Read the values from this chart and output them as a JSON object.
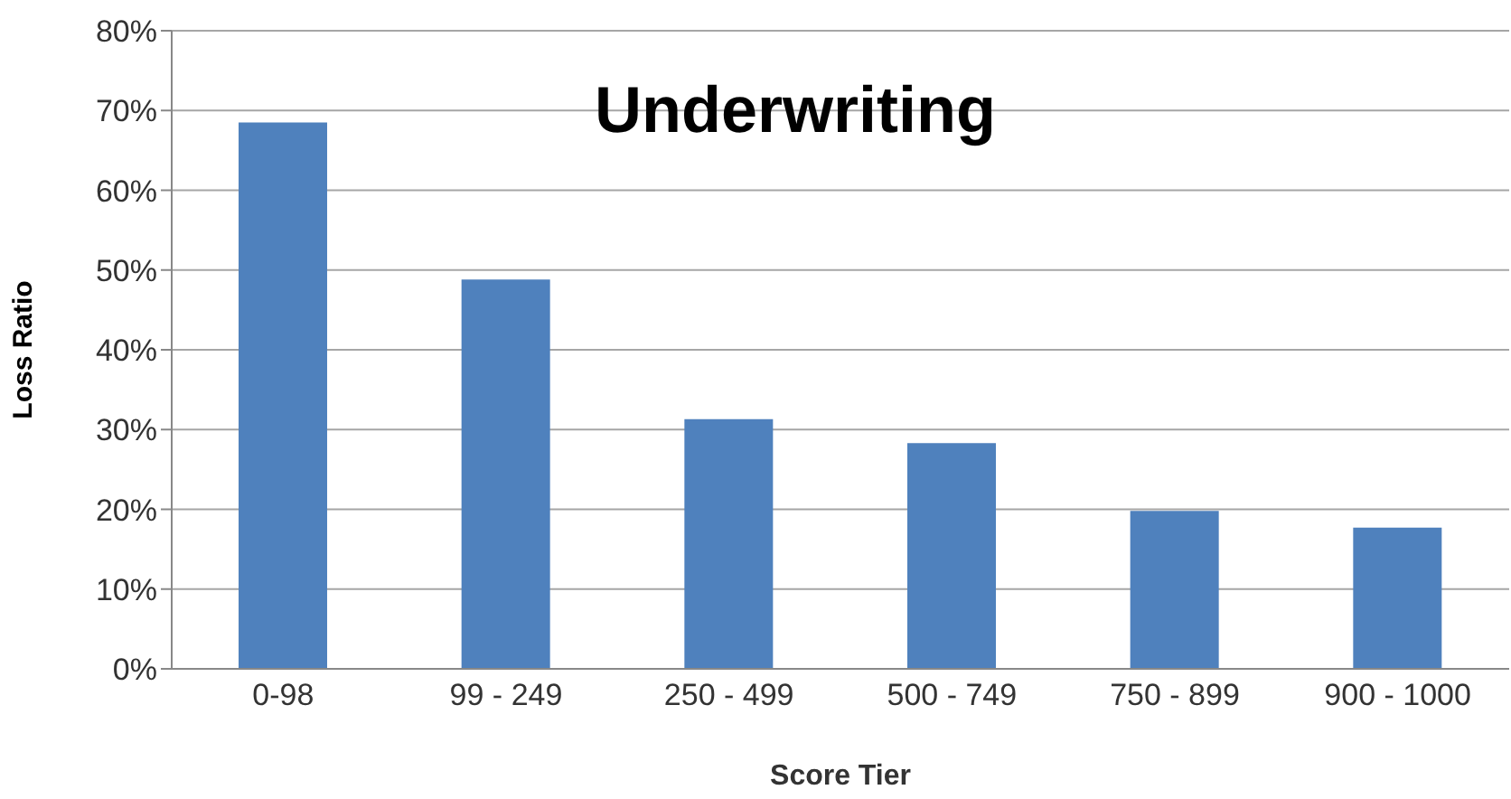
{
  "chart_data": {
    "type": "bar",
    "title": "Underwriting",
    "xlabel": "Score Tier",
    "ylabel": "Loss Ratio",
    "categories": [
      "0-98",
      "99 - 249",
      "250 - 499",
      "500 - 749",
      "750 - 899",
      "900 - 1000"
    ],
    "values": [
      68.5,
      48.8,
      31.3,
      28.3,
      19.8,
      17.7
    ],
    "color": "#4f81bd",
    "ylim": [
      0,
      80
    ],
    "yticks": [
      {
        "value": 0,
        "label": "0%"
      },
      {
        "value": 10,
        "label": "10%"
      },
      {
        "value": 20,
        "label": "20%"
      },
      {
        "value": 30,
        "label": "30%"
      },
      {
        "value": 40,
        "label": "40%"
      },
      {
        "value": 50,
        "label": "50%"
      },
      {
        "value": 60,
        "label": "60%"
      },
      {
        "value": 70,
        "label": "70%"
      },
      {
        "value": 80,
        "label": "80%"
      }
    ],
    "grid": "y"
  }
}
